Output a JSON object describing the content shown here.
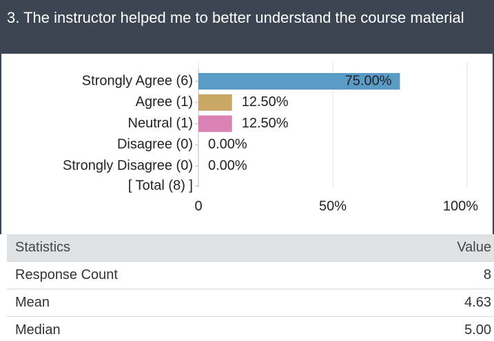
{
  "title": "3. The instructor helped me to better understand the course material",
  "chart_data": {
    "type": "bar",
    "orientation": "horizontal",
    "categories": [
      "Strongly Agree (6)",
      "Agree (1)",
      "Neutral (1)",
      "Disagree (0)",
      "Strongly Disagree (0)"
    ],
    "total_label": "[ Total (8) ]",
    "values": [
      75,
      12.5,
      12.5,
      0,
      0
    ],
    "value_labels": [
      "75.00%",
      "12.50%",
      "12.50%",
      "0.00%",
      "0.00%"
    ],
    "colors": [
      "#5a9bc6",
      "#c9a765",
      "#d982b3",
      "#888888",
      "#888888"
    ],
    "xlim": [
      0,
      100
    ],
    "xticks": [
      0,
      {
        "value": 50,
        "label": "50%"
      },
      {
        "value": 100,
        "label": "100%"
      }
    ],
    "grid": true
  },
  "table": {
    "header": [
      "Statistics",
      "Value"
    ],
    "rows": [
      [
        "Response Count",
        "8"
      ],
      [
        "Mean",
        "4.63"
      ],
      [
        "Median",
        "5.00"
      ]
    ]
  }
}
